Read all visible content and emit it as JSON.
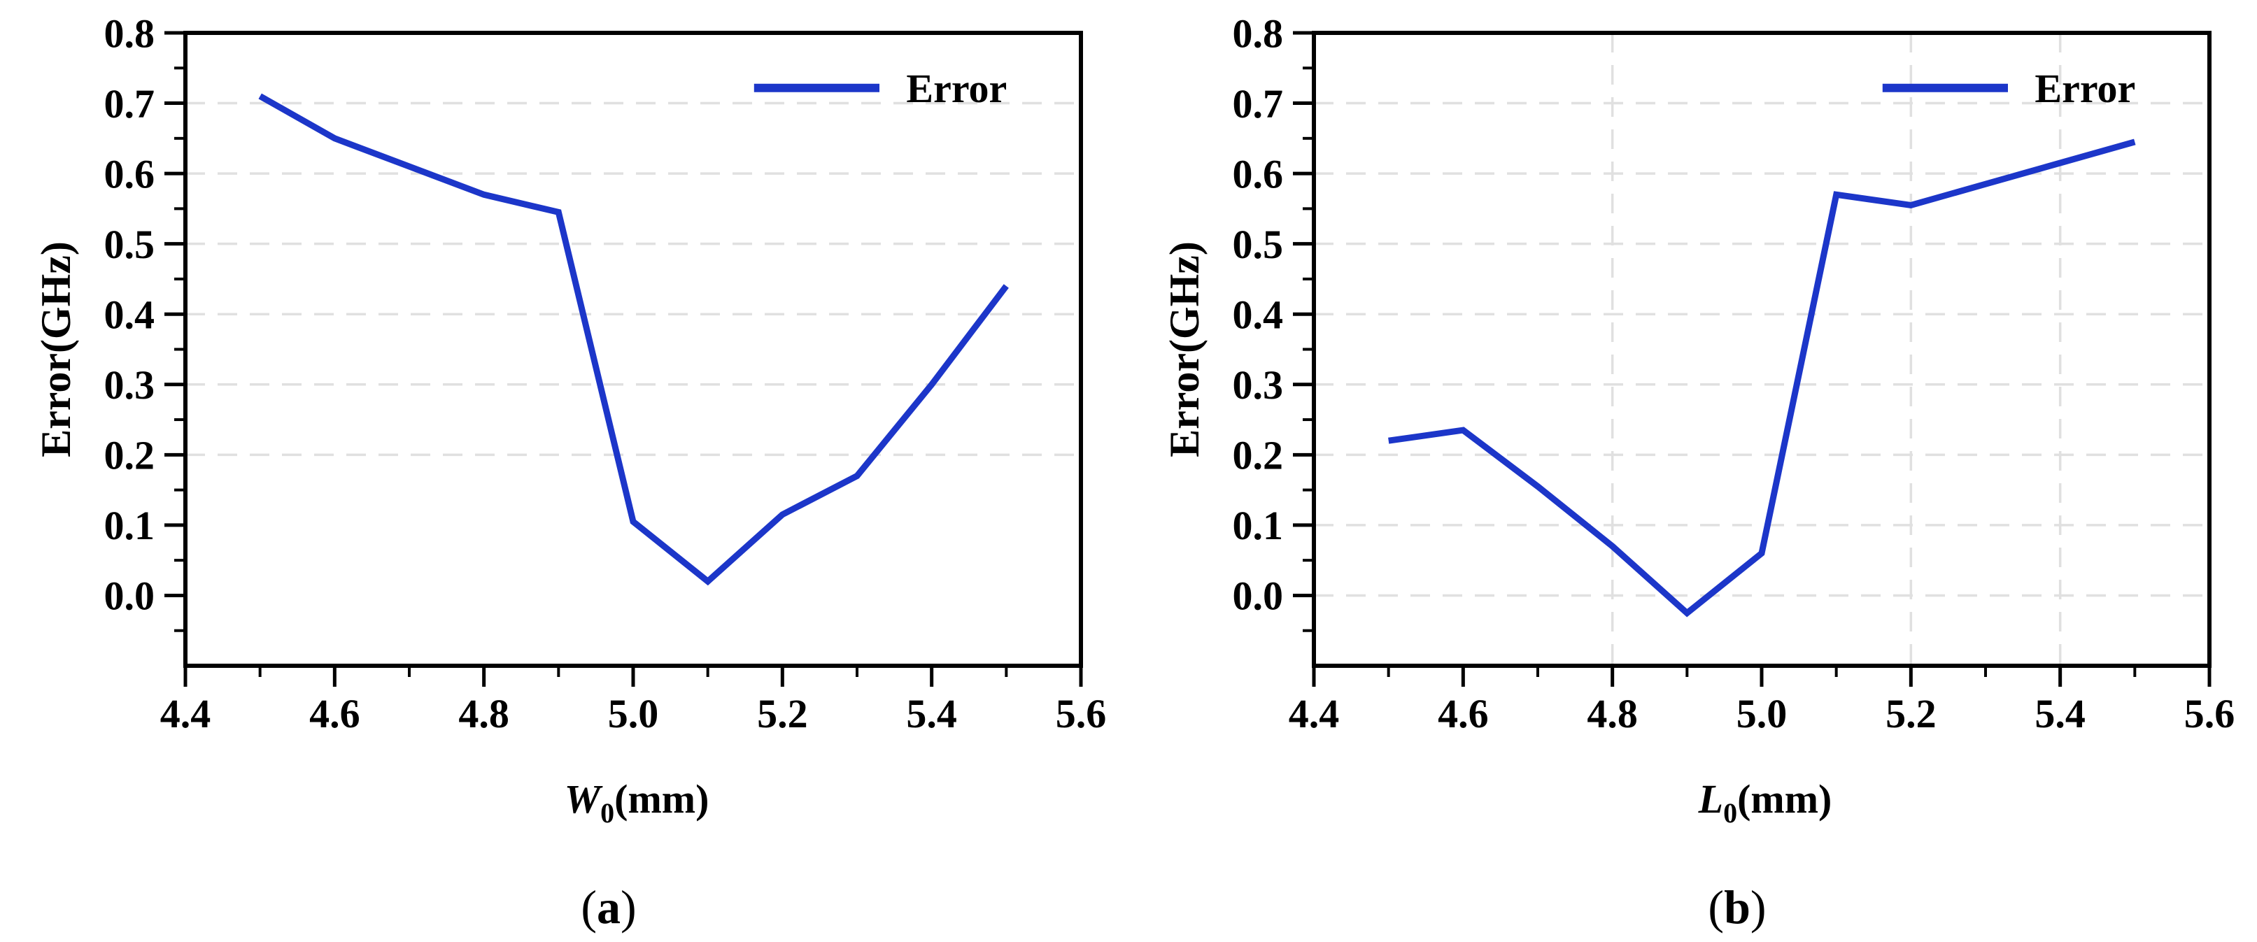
{
  "figure": {
    "background": "#ffffff",
    "frame_color": "#000000",
    "grid_color": "#e0e0e0",
    "text_color": "#000000",
    "accent_line_color": "#1c36c9"
  },
  "chart_data": [
    {
      "id": "a",
      "type": "line",
      "title": "",
      "caption": {
        "open": "(",
        "letter": "a",
        "close": ")"
      },
      "xlabel": {
        "variable": "W",
        "subscript": "0",
        "unit": "(mm)"
      },
      "ylabel": "Error(GHz)",
      "xlim": [
        4.4,
        5.6
      ],
      "ylim": [
        -0.1,
        0.8
      ],
      "x_tick_labels": [
        "4.4",
        "4.6",
        "4.8",
        "5.0",
        "5.2",
        "5.4",
        "5.6"
      ],
      "x_tick_values": [
        4.4,
        4.6,
        4.8,
        5.0,
        5.2,
        5.4,
        5.6
      ],
      "x_minor_tick_values": [
        4.5,
        4.7,
        4.9,
        5.1,
        5.3,
        5.5
      ],
      "y_tick_labels": [
        "0.0",
        "0.1",
        "0.2",
        "0.3",
        "0.4",
        "0.5",
        "0.6",
        "0.7",
        "0.8"
      ],
      "y_tick_values": [
        0.0,
        0.1,
        0.2,
        0.3,
        0.4,
        0.5,
        0.6,
        0.7,
        0.8
      ],
      "y_minor_tick_values": [
        -0.05,
        0.05,
        0.15,
        0.25,
        0.35,
        0.45,
        0.55,
        0.65,
        0.75
      ],
      "grid_y_values": [
        0.2,
        0.3,
        0.4,
        0.5,
        0.6,
        0.7
      ],
      "grid_x_values": [],
      "legend": {
        "label": "Error",
        "position": "top-right"
      },
      "series": [
        {
          "name": "Error",
          "color": "#1c36c9",
          "x": [
            4.5,
            4.6,
            4.7,
            4.8,
            4.9,
            5.0,
            5.1,
            5.2,
            5.3,
            5.4,
            5.5
          ],
          "y": [
            0.71,
            0.65,
            0.61,
            0.57,
            0.545,
            0.105,
            0.02,
            0.115,
            0.17,
            0.3,
            0.44
          ]
        }
      ]
    },
    {
      "id": "b",
      "type": "line",
      "title": "",
      "caption": {
        "open": "(",
        "letter": "b",
        "close": ")"
      },
      "xlabel": {
        "variable": "L",
        "subscript": "0",
        "unit": "(mm)"
      },
      "ylabel": "Error(GHz)",
      "xlim": [
        4.4,
        5.6
      ],
      "ylim": [
        -0.1,
        0.8
      ],
      "x_tick_labels": [
        "4.4",
        "4.6",
        "4.8",
        "5.0",
        "5.2",
        "5.4",
        "5.6"
      ],
      "x_tick_values": [
        4.4,
        4.6,
        4.8,
        5.0,
        5.2,
        5.4,
        5.6
      ],
      "x_minor_tick_values": [
        4.5,
        4.7,
        4.9,
        5.1,
        5.3,
        5.5
      ],
      "y_tick_labels": [
        "0.0",
        "0.1",
        "0.2",
        "0.3",
        "0.4",
        "0.5",
        "0.6",
        "0.7",
        "0.8"
      ],
      "y_tick_values": [
        0.0,
        0.1,
        0.2,
        0.3,
        0.4,
        0.5,
        0.6,
        0.7,
        0.8
      ],
      "y_minor_tick_values": [
        -0.05,
        0.05,
        0.15,
        0.25,
        0.35,
        0.45,
        0.55,
        0.65,
        0.75
      ],
      "grid_y_values": [
        0.0,
        0.1,
        0.2,
        0.3,
        0.4,
        0.5,
        0.6,
        0.7
      ],
      "grid_x_values": [
        4.8,
        5.2,
        5.4
      ],
      "legend": {
        "label": "Error",
        "position": "top-right"
      },
      "series": [
        {
          "name": "Error",
          "color": "#1c36c9",
          "x": [
            4.5,
            4.6,
            4.7,
            4.8,
            4.9,
            5.0,
            5.1,
            5.2,
            5.3,
            5.4,
            5.5
          ],
          "y": [
            0.22,
            0.235,
            0.155,
            0.07,
            -0.025,
            0.06,
            0.57,
            0.555,
            0.585,
            0.615,
            0.645
          ]
        }
      ]
    }
  ]
}
